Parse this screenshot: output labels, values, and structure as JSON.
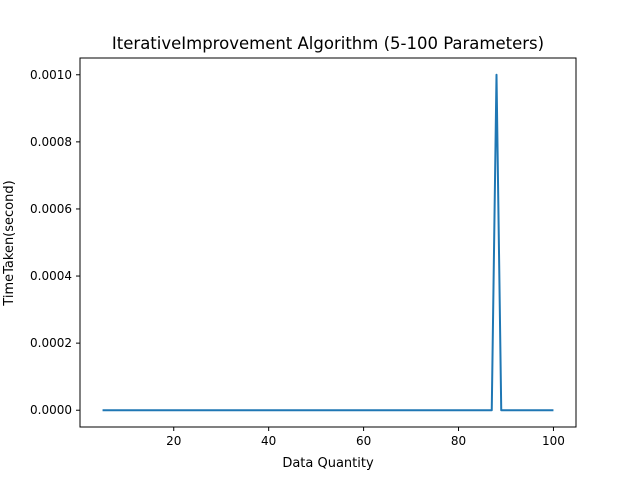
{
  "chart_data": {
    "type": "line",
    "title": "IterativeImprovement Algorithm (5-100 Parameters)",
    "xlabel": "Data Quantity",
    "ylabel": "TimeTaken(second)",
    "xlim": [
      0.25,
      104.75
    ],
    "ylim": [
      -5e-05,
      0.00105
    ],
    "x_ticks": [
      20,
      40,
      60,
      80,
      100
    ],
    "x_tick_labels": [
      "20",
      "40",
      "60",
      "80",
      "100"
    ],
    "y_ticks": [
      0,
      0.0002,
      0.0004,
      0.0006,
      0.0008,
      0.001
    ],
    "y_tick_labels": [
      "0.0000",
      "0.0002",
      "0.0004",
      "0.0006",
      "0.0008",
      "0.0010"
    ],
    "grid": false,
    "colors": {
      "series": "#1f77b4"
    },
    "series": [
      {
        "x": [
          5,
          87,
          88,
          89,
          100
        ],
        "values": [
          0,
          0,
          0.001,
          0,
          0
        ]
      }
    ]
  }
}
